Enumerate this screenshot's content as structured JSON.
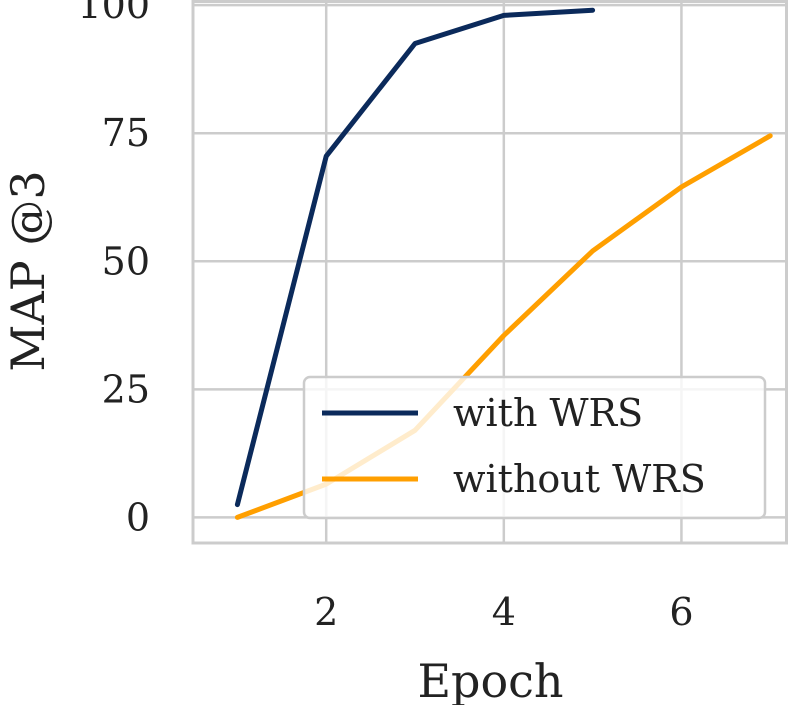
{
  "chart_data": {
    "type": "line",
    "xlabel": "Epoch",
    "ylabel": "MAP @3",
    "xlim": [
      0.5,
      7.2
    ],
    "ylim": [
      -5,
      101
    ],
    "xticks": [
      2,
      4,
      6
    ],
    "yticks": [
      0,
      25,
      50,
      75,
      100
    ],
    "grid": true,
    "legend_position": "lower-right",
    "series": [
      {
        "name": "with WRS",
        "color": "#0b2a5b",
        "x": [
          1,
          2,
          3,
          4,
          5
        ],
        "y": [
          2.5,
          70.5,
          92.5,
          98,
          99
        ]
      },
      {
        "name": "without WRS",
        "color": "#ff9f00",
        "x": [
          1,
          2,
          3,
          4,
          5,
          6,
          7
        ],
        "y": [
          0,
          6.5,
          17,
          35.5,
          52,
          64.5,
          74.5
        ]
      }
    ]
  }
}
